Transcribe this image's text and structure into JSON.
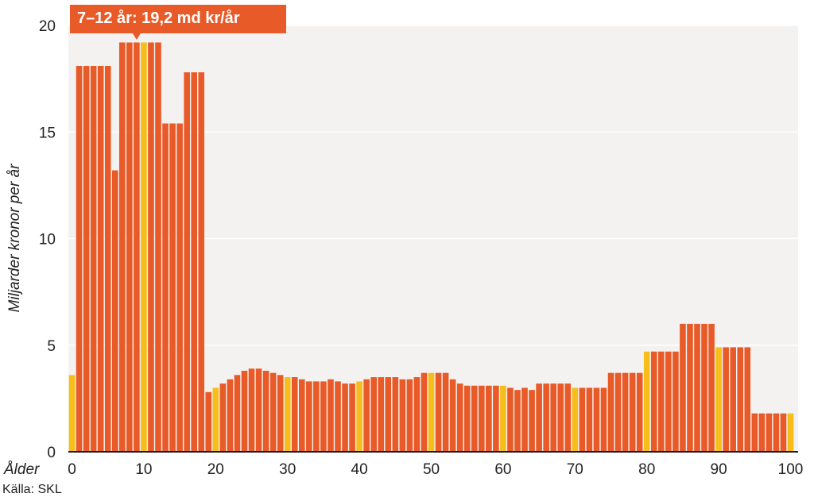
{
  "chart_data": {
    "type": "bar",
    "ylabel": "Miljarder kronor per år",
    "xlabel": "Ålder",
    "ylim": [
      0,
      20
    ],
    "yticks": [
      0,
      5,
      10,
      15,
      20
    ],
    "xticks": [
      0,
      10,
      20,
      30,
      40,
      50,
      60,
      70,
      80,
      90,
      100
    ],
    "grid": true,
    "x": [
      0,
      1,
      2,
      3,
      4,
      5,
      6,
      7,
      8,
      9,
      10,
      11,
      12,
      13,
      14,
      15,
      16,
      17,
      18,
      19,
      20,
      21,
      22,
      23,
      24,
      25,
      26,
      27,
      28,
      29,
      30,
      31,
      32,
      33,
      34,
      35,
      36,
      37,
      38,
      39,
      40,
      41,
      42,
      43,
      44,
      45,
      46,
      47,
      48,
      49,
      50,
      51,
      52,
      53,
      54,
      55,
      56,
      57,
      58,
      59,
      60,
      61,
      62,
      63,
      64,
      65,
      66,
      67,
      68,
      69,
      70,
      71,
      72,
      73,
      74,
      75,
      76,
      77,
      78,
      79,
      80,
      81,
      82,
      83,
      84,
      85,
      86,
      87,
      88,
      89,
      90,
      91,
      92,
      93,
      94,
      95,
      96,
      97,
      98,
      99,
      100
    ],
    "values": [
      3.6,
      18.1,
      18.1,
      18.1,
      18.1,
      18.1,
      13.2,
      19.2,
      19.2,
      19.2,
      19.2,
      19.2,
      19.2,
      15.4,
      15.4,
      15.4,
      17.8,
      17.8,
      17.8,
      2.8,
      3.0,
      3.2,
      3.4,
      3.6,
      3.8,
      3.9,
      3.9,
      3.8,
      3.7,
      3.6,
      3.5,
      3.5,
      3.4,
      3.3,
      3.3,
      3.3,
      3.4,
      3.3,
      3.2,
      3.2,
      3.3,
      3.4,
      3.5,
      3.5,
      3.5,
      3.5,
      3.4,
      3.4,
      3.5,
      3.7,
      3.7,
      3.7,
      3.7,
      3.4,
      3.2,
      3.1,
      3.1,
      3.1,
      3.1,
      3.1,
      3.1,
      3.0,
      2.9,
      3.0,
      2.9,
      3.2,
      3.2,
      3.2,
      3.2,
      3.2,
      3.0,
      3.0,
      3.0,
      3.0,
      3.0,
      3.7,
      3.7,
      3.7,
      3.7,
      3.7,
      4.7,
      4.7,
      4.7,
      4.7,
      4.7,
      6.0,
      6.0,
      6.0,
      6.0,
      6.0,
      4.9,
      4.9,
      4.9,
      4.9,
      4.9,
      1.8,
      1.8,
      1.8,
      1.8,
      1.8,
      1.8
    ],
    "highlight_ages": [
      0,
      10,
      20,
      30,
      40,
      50,
      60,
      70,
      80,
      90,
      100
    ],
    "annotation": {
      "text": "7–12 år: 19,2 md kr/år",
      "x": 9,
      "y": 19.2
    },
    "colors": {
      "bar": "#E85A28",
      "highlight": "#F7BD1B",
      "background": "#F3F2F1",
      "grid": "#FFFFFF",
      "callout": "#E85A28"
    }
  },
  "source": "Källa: SKL"
}
